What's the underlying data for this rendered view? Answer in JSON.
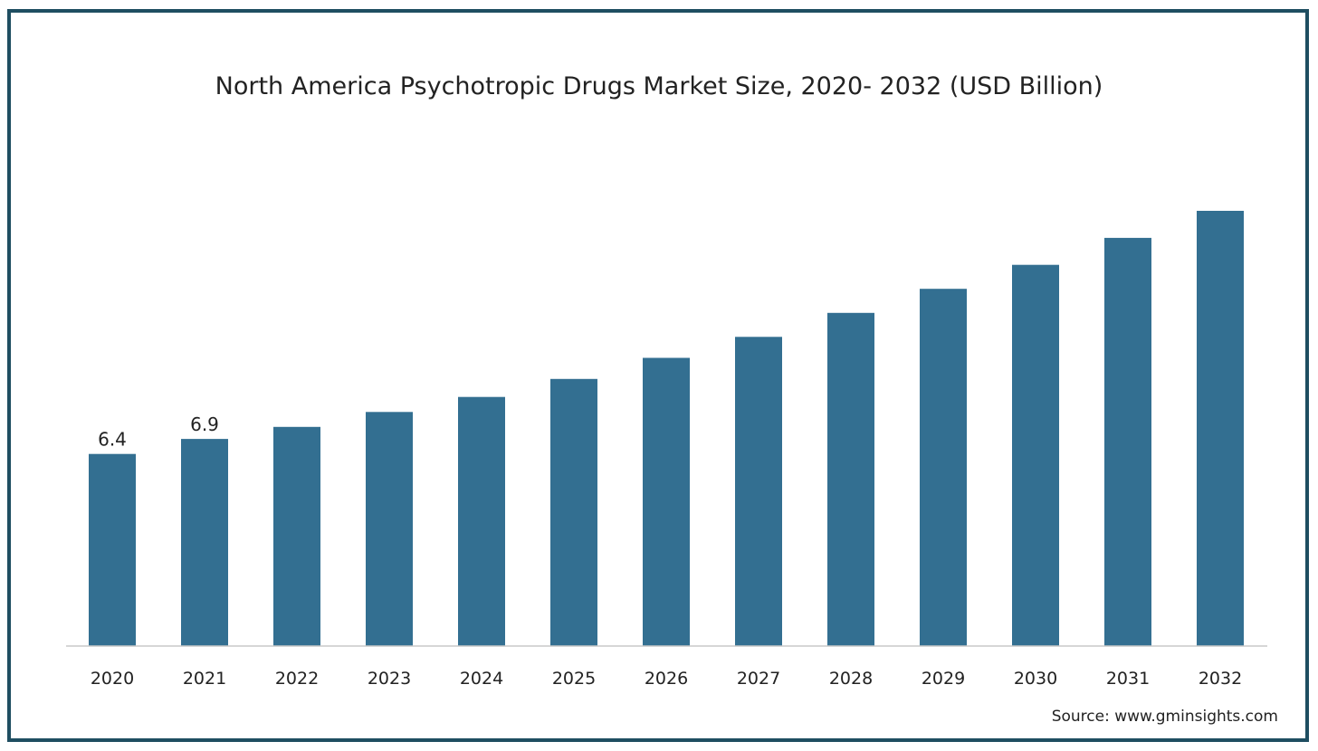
{
  "colors": {
    "bar": "#336f91",
    "frame": "#1f4e61",
    "axis": "#c8c8c8"
  },
  "source": "Source: www.gminsights.com",
  "chart_data": {
    "type": "bar",
    "title": "North America Psychotropic Drugs Market Size, 2020- 2032 (USD Billion)",
    "xlabel": "",
    "ylabel": "",
    "categories": [
      "2020",
      "2021",
      "2022",
      "2023",
      "2024",
      "2025",
      "2026",
      "2027",
      "2028",
      "2029",
      "2030",
      "2031",
      "2032"
    ],
    "values": [
      6.4,
      6.9,
      7.3,
      7.8,
      8.3,
      8.9,
      9.6,
      10.3,
      11.1,
      11.9,
      12.7,
      13.6,
      14.5
    ],
    "value_labels": [
      "6.4",
      "6.9",
      "",
      "",
      "",
      "",
      "",
      "",
      "",
      "",
      "",
      "",
      ""
    ],
    "ylim": [
      0,
      14.5
    ],
    "grid": false,
    "legend": "none"
  }
}
